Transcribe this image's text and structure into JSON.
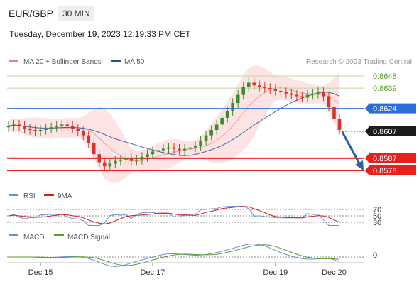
{
  "header": {
    "symbol": "EUR/GBP",
    "timeframe": "30 MIN",
    "datetime": "Tuesday, December 19, 2023 12:19:33 PM CET"
  },
  "credit": "Research © 2023 Trading Central",
  "colors": {
    "bollinger": "#f5a0a0",
    "bollinger_fill": "#fde3e3",
    "ma50": "#3a6ea5",
    "green": "#5a9e2a",
    "blue": "#2b6fd6",
    "red": "#e8201b",
    "candle_up": "#3d8b2f",
    "candle_down": "#d9342b",
    "arrow": "#2c5f9e"
  },
  "legend": {
    "ma20": "MA 20 + Bollinger Bands",
    "ma50": "MA 50",
    "rsi": "RSI",
    "rsi_ma": "9MA",
    "macd": "MACD",
    "macd_signal": "MACD Signal"
  },
  "chart_data": {
    "type": "candlestick",
    "x_ticks": [
      "Dec 15",
      "Dec 17",
      "Dec 19",
      "Dec 20"
    ],
    "ylim": [
      0.8572,
      0.8652
    ],
    "last_price": "0.8607",
    "levels": [
      {
        "label": "0.8648",
        "value": 0.8648,
        "kind": "resistance"
      },
      {
        "label": "0.8639",
        "value": 0.8639,
        "kind": "resistance"
      },
      {
        "label": "0.8624",
        "value": 0.8624,
        "kind": "pivot"
      },
      {
        "label": "0.8587",
        "value": 0.8587,
        "kind": "support"
      },
      {
        "label": "0.8578",
        "value": 0.8578,
        "kind": "support"
      }
    ],
    "close": [
      0.8611,
      0.8612,
      0.8611,
      0.8609,
      0.8608,
      0.8607,
      0.8608,
      0.8609,
      0.861,
      0.8611,
      0.8612,
      0.8611,
      0.8609,
      0.8607,
      0.8604,
      0.8598,
      0.859,
      0.8584,
      0.8581,
      0.8583,
      0.8585,
      0.8586,
      0.8587,
      0.8585,
      0.8586,
      0.8588,
      0.859,
      0.8592,
      0.8593,
      0.8594,
      0.8595,
      0.8594,
      0.8593,
      0.8594,
      0.8595,
      0.8596,
      0.86,
      0.8604,
      0.8608,
      0.8612,
      0.8617,
      0.8622,
      0.8628,
      0.8634,
      0.864,
      0.8643,
      0.8641,
      0.864,
      0.8639,
      0.8638,
      0.8637,
      0.8636,
      0.8635,
      0.8634,
      0.8633,
      0.8632,
      0.8634,
      0.8635,
      0.8636,
      0.8633,
      0.8625,
      0.8616,
      0.8608
    ],
    "rsi_levels": [
      70,
      50,
      30
    ],
    "macd_levels": [
      0
    ]
  }
}
